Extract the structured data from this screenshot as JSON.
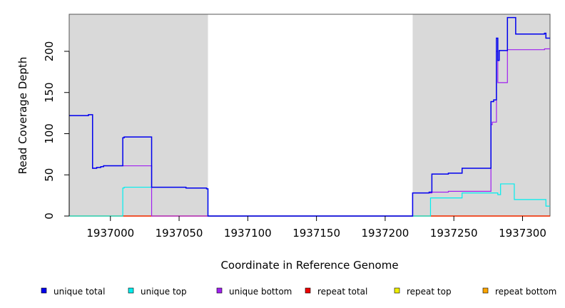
{
  "chart_data": {
    "type": "line",
    "title": "",
    "xlabel": "Coordinate in Reference Genome",
    "ylabel": "Read Coverage Depth",
    "xlim": [
      1936970,
      1937320
    ],
    "ylim": [
      0,
      245
    ],
    "x_ticks": [
      1937000,
      1937050,
      1937100,
      1937150,
      1937200,
      1937250,
      1937300
    ],
    "y_ticks": [
      0,
      50,
      100,
      150,
      200
    ],
    "grid": false,
    "legend_position": "bottom",
    "shaded_regions": [
      {
        "x_start": 1936970,
        "x_end": 1937071
      },
      {
        "x_start": 1937220,
        "x_end": 1937320
      }
    ],
    "series": [
      {
        "name": "unique total",
        "color": "#0000ee",
        "points": [
          [
            1936970,
            122
          ],
          [
            1936984,
            122
          ],
          [
            1936984,
            123
          ],
          [
            1936987,
            123
          ],
          [
            1936987,
            58
          ],
          [
            1936990,
            58
          ],
          [
            1936990,
            59
          ],
          [
            1936993,
            59
          ],
          [
            1936993,
            60
          ],
          [
            1936995,
            60
          ],
          [
            1936995,
            61
          ],
          [
            1937009,
            61
          ],
          [
            1937009,
            95
          ],
          [
            1937010,
            95
          ],
          [
            1937010,
            96
          ],
          [
            1937030,
            96
          ],
          [
            1937030,
            35
          ],
          [
            1937055,
            35
          ],
          [
            1937055,
            34
          ],
          [
            1937070,
            34
          ],
          [
            1937070,
            33
          ],
          [
            1937071,
            33
          ],
          [
            1937071,
            0
          ],
          [
            1937220,
            0
          ],
          [
            1937220,
            28
          ],
          [
            1937232,
            28
          ],
          [
            1937232,
            29
          ],
          [
            1937234,
            29
          ],
          [
            1937234,
            51
          ],
          [
            1937246,
            51
          ],
          [
            1937246,
            52
          ],
          [
            1937256,
            52
          ],
          [
            1937256,
            58
          ],
          [
            1937277,
            58
          ],
          [
            1937277,
            139
          ],
          [
            1937279,
            139
          ],
          [
            1937279,
            141
          ],
          [
            1937281,
            141
          ],
          [
            1937281,
            216
          ],
          [
            1937282,
            216
          ],
          [
            1937282,
            189
          ],
          [
            1937283,
            189
          ],
          [
            1937283,
            201
          ],
          [
            1937289,
            201
          ],
          [
            1937289,
            241
          ],
          [
            1937295,
            241
          ],
          [
            1937295,
            221
          ],
          [
            1937316,
            221
          ],
          [
            1937316,
            222
          ],
          [
            1937317,
            222
          ],
          [
            1937317,
            216
          ],
          [
            1937320,
            216
          ]
        ]
      },
      {
        "name": "unique top",
        "color": "#00eeee",
        "points": [
          [
            1936970,
            0
          ],
          [
            1937009,
            0
          ],
          [
            1937009,
            34
          ],
          [
            1937010,
            34
          ],
          [
            1937010,
            35
          ],
          [
            1937055,
            35
          ],
          [
            1937055,
            34
          ],
          [
            1937070,
            34
          ],
          [
            1937070,
            33
          ],
          [
            1937071,
            33
          ],
          [
            1937071,
            0
          ],
          [
            1937233,
            0
          ],
          [
            1937233,
            22
          ],
          [
            1937256,
            22
          ],
          [
            1937256,
            28
          ],
          [
            1937282,
            28
          ],
          [
            1937282,
            26
          ],
          [
            1937284,
            26
          ],
          [
            1937284,
            39
          ],
          [
            1937294,
            39
          ],
          [
            1937294,
            20
          ],
          [
            1937317,
            20
          ],
          [
            1937317,
            12
          ],
          [
            1937320,
            12
          ]
        ]
      },
      {
        "name": "unique bottom",
        "color": "#a020f0",
        "points": [
          [
            1936970,
            122
          ],
          [
            1936984,
            122
          ],
          [
            1936984,
            123
          ],
          [
            1936987,
            123
          ],
          [
            1936987,
            58
          ],
          [
            1936990,
            58
          ],
          [
            1936990,
            59
          ],
          [
            1936993,
            59
          ],
          [
            1936993,
            60
          ],
          [
            1936995,
            60
          ],
          [
            1936995,
            61
          ],
          [
            1937030,
            61
          ],
          [
            1937030,
            0
          ],
          [
            1937220,
            0
          ],
          [
            1937220,
            28
          ],
          [
            1937234,
            28
          ],
          [
            1937234,
            29
          ],
          [
            1937246,
            29
          ],
          [
            1937246,
            30
          ],
          [
            1937277,
            30
          ],
          [
            1937277,
            111
          ],
          [
            1937278,
            111
          ],
          [
            1937278,
            114
          ],
          [
            1937281,
            114
          ],
          [
            1937281,
            200
          ],
          [
            1937282,
            200
          ],
          [
            1937282,
            162
          ],
          [
            1937289,
            162
          ],
          [
            1937289,
            202
          ],
          [
            1937316,
            202
          ],
          [
            1937316,
            203
          ],
          [
            1937320,
            203
          ]
        ]
      },
      {
        "name": "repeat total",
        "color": "#ee0000",
        "points": [
          [
            1936970,
            0
          ],
          [
            1937320,
            0
          ]
        ]
      },
      {
        "name": "repeat top",
        "color": "#eeee00",
        "points": [
          [
            1936970,
            0
          ],
          [
            1937320,
            0
          ]
        ]
      },
      {
        "name": "repeat bottom",
        "color": "#ffa500",
        "points": [
          [
            1936970,
            0
          ],
          [
            1937320,
            0
          ]
        ]
      }
    ]
  }
}
